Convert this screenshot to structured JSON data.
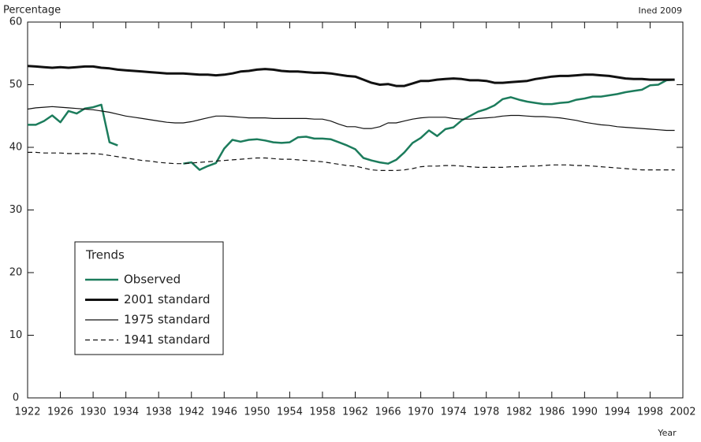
{
  "chart_data": {
    "type": "line",
    "y_label": "Percentage",
    "source": "Ined 2009",
    "x_label": "Year",
    "legend_title": "Trends",
    "x": [
      1922,
      1923,
      1924,
      1925,
      1926,
      1927,
      1928,
      1929,
      1930,
      1931,
      1932,
      1933,
      1934,
      1935,
      1936,
      1937,
      1938,
      1939,
      1940,
      1941,
      1942,
      1943,
      1944,
      1945,
      1946,
      1947,
      1948,
      1949,
      1950,
      1951,
      1952,
      1953,
      1954,
      1955,
      1956,
      1957,
      1958,
      1959,
      1960,
      1961,
      1962,
      1963,
      1964,
      1965,
      1966,
      1967,
      1968,
      1969,
      1970,
      1971,
      1972,
      1973,
      1974,
      1975,
      1976,
      1977,
      1978,
      1979,
      1980,
      1981,
      1982,
      1983,
      1984,
      1985,
      1986,
      1987,
      1988,
      1989,
      1990,
      1991,
      1992,
      1993,
      1994,
      1995,
      1996,
      1997,
      1998,
      1999,
      2000,
      2001
    ],
    "series": [
      {
        "name": "Observed",
        "color": "#1c7c5c",
        "line_width": 2.5,
        "dash": "solid",
        "values": [
          43.6,
          43.6,
          44.2,
          45.1,
          44.0,
          45.8,
          45.4,
          46.2,
          46.4,
          46.8,
          40.8,
          40.3,
          null,
          null,
          null,
          null,
          null,
          null,
          null,
          37.4,
          37.6,
          36.4,
          37.0,
          37.5,
          39.8,
          41.2,
          40.9,
          41.2,
          41.3,
          41.1,
          40.8,
          40.7,
          40.8,
          41.6,
          41.7,
          41.4,
          41.4,
          41.3,
          40.8,
          40.3,
          39.7,
          38.3,
          37.9,
          37.6,
          37.4,
          38.0,
          39.2,
          40.7,
          41.5,
          42.7,
          41.8,
          42.9,
          43.2,
          44.3,
          45.0,
          45.7,
          46.1,
          46.7,
          47.7,
          48.0,
          47.6,
          47.3,
          47.1,
          46.9,
          46.9,
          47.1,
          47.2,
          47.6,
          47.8,
          48.1,
          48.1,
          48.3,
          48.5,
          48.8,
          49.0,
          49.2,
          49.9,
          50.0,
          50.7,
          50.8
        ]
      },
      {
        "name": "2001 standard",
        "color": "#111111",
        "line_width": 3,
        "dash": "solid",
        "values": [
          53.0,
          52.9,
          52.8,
          52.7,
          52.8,
          52.7,
          52.8,
          52.9,
          52.9,
          52.7,
          52.6,
          52.4,
          52.3,
          52.2,
          52.1,
          52.0,
          51.9,
          51.8,
          51.8,
          51.8,
          51.7,
          51.6,
          51.6,
          51.5,
          51.6,
          51.8,
          52.1,
          52.2,
          52.4,
          52.5,
          52.4,
          52.2,
          52.1,
          52.1,
          52.0,
          51.9,
          51.9,
          51.8,
          51.6,
          51.4,
          51.3,
          50.8,
          50.3,
          50.0,
          50.1,
          49.8,
          49.8,
          50.2,
          50.6,
          50.6,
          50.8,
          50.9,
          51.0,
          50.9,
          50.7,
          50.7,
          50.6,
          50.3,
          50.3,
          50.4,
          50.5,
          50.6,
          50.9,
          51.1,
          51.3,
          51.4,
          51.4,
          51.5,
          51.6,
          51.6,
          51.5,
          51.4,
          51.2,
          51.0,
          50.9,
          50.9,
          50.8,
          50.8,
          50.8,
          50.8
        ]
      },
      {
        "name": "1975 standard",
        "color": "#111111",
        "line_width": 1.2,
        "dash": "solid",
        "values": [
          46.1,
          46.3,
          46.4,
          46.5,
          46.4,
          46.3,
          46.2,
          46.1,
          46.0,
          45.8,
          45.6,
          45.3,
          45.0,
          44.8,
          44.6,
          44.4,
          44.2,
          44.0,
          43.9,
          43.9,
          44.1,
          44.4,
          44.7,
          45.0,
          45.0,
          44.9,
          44.8,
          44.7,
          44.7,
          44.7,
          44.6,
          44.6,
          44.6,
          44.6,
          44.6,
          44.5,
          44.5,
          44.2,
          43.7,
          43.3,
          43.3,
          43.0,
          43.0,
          43.3,
          43.9,
          43.9,
          44.2,
          44.5,
          44.7,
          44.8,
          44.8,
          44.8,
          44.6,
          44.5,
          44.5,
          44.6,
          44.7,
          44.8,
          45.0,
          45.1,
          45.1,
          45.0,
          44.9,
          44.9,
          44.8,
          44.7,
          44.5,
          44.3,
          44.0,
          43.8,
          43.6,
          43.5,
          43.3,
          43.2,
          43.1,
          43.0,
          42.9,
          42.8,
          42.7,
          42.7
        ]
      },
      {
        "name": "1941 standard",
        "color": "#111111",
        "line_width": 1.2,
        "dash": "dashed",
        "values": [
          39.2,
          39.2,
          39.1,
          39.1,
          39.1,
          39.0,
          39.0,
          39.0,
          39.0,
          38.9,
          38.7,
          38.5,
          38.3,
          38.1,
          37.9,
          37.8,
          37.6,
          37.5,
          37.4,
          37.4,
          37.5,
          37.6,
          37.7,
          37.8,
          37.9,
          38.0,
          38.1,
          38.2,
          38.3,
          38.3,
          38.2,
          38.1,
          38.1,
          38.0,
          37.9,
          37.8,
          37.7,
          37.5,
          37.3,
          37.1,
          37.0,
          36.7,
          36.4,
          36.3,
          36.3,
          36.3,
          36.4,
          36.6,
          36.9,
          37.0,
          37.0,
          37.1,
          37.1,
          37.0,
          36.9,
          36.8,
          36.8,
          36.8,
          36.8,
          36.9,
          36.9,
          37.0,
          37.0,
          37.1,
          37.2,
          37.2,
          37.2,
          37.1,
          37.1,
          37.0,
          36.9,
          36.8,
          36.7,
          36.6,
          36.5,
          36.4,
          36.4,
          36.4,
          36.4,
          36.4
        ]
      }
    ],
    "xlim": [
      1922,
      2002
    ],
    "xticks": [
      1922,
      1926,
      1930,
      1934,
      1938,
      1942,
      1946,
      1950,
      1954,
      1958,
      1962,
      1966,
      1970,
      1974,
      1978,
      1982,
      1986,
      1990,
      1994,
      1998,
      2002
    ],
    "ylim": [
      0,
      60
    ],
    "yticks": [
      0,
      10,
      20,
      30,
      40,
      50,
      60
    ],
    "grid": false
  }
}
